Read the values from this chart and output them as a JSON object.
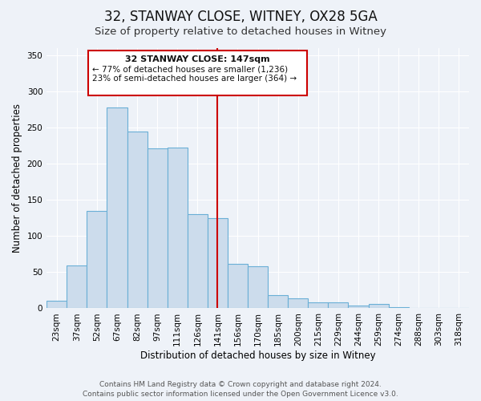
{
  "title": "32, STANWAY CLOSE, WITNEY, OX28 5GA",
  "subtitle": "Size of property relative to detached houses in Witney",
  "xlabel": "Distribution of detached houses by size in Witney",
  "ylabel": "Number of detached properties",
  "categories": [
    "23sqm",
    "37sqm",
    "52sqm",
    "67sqm",
    "82sqm",
    "97sqm",
    "111sqm",
    "126sqm",
    "141sqm",
    "156sqm",
    "170sqm",
    "185sqm",
    "200sqm",
    "215sqm",
    "229sqm",
    "244sqm",
    "259sqm",
    "274sqm",
    "288sqm",
    "303sqm",
    "318sqm"
  ],
  "values": [
    10,
    59,
    135,
    278,
    245,
    221,
    222,
    130,
    125,
    61,
    58,
    18,
    14,
    8,
    8,
    4,
    6,
    2,
    1,
    0,
    0
  ],
  "bar_color": "#ccdcec",
  "bar_edge_color": "#6aafd6",
  "vline_color": "#cc0000",
  "vline_x_index": 8,
  "annotation_title": "32 STANWAY CLOSE: 147sqm",
  "annotation_line1": "← 77% of detached houses are smaller (1,236)",
  "annotation_line2": "23% of semi-detached houses are larger (364) →",
  "annotation_box_edge_color": "#cc0000",
  "annotation_bg": "#ffffff",
  "footer1": "Contains HM Land Registry data © Crown copyright and database right 2024.",
  "footer2": "Contains public sector information licensed under the Open Government Licence v3.0.",
  "ylim": [
    0,
    360
  ],
  "yticks": [
    0,
    50,
    100,
    150,
    200,
    250,
    300,
    350
  ],
  "bg_color": "#eef2f8",
  "plot_bg_color": "#eef2f8",
  "title_fontsize": 12,
  "subtitle_fontsize": 9.5,
  "axis_label_fontsize": 8.5,
  "tick_fontsize": 7.5,
  "footer_fontsize": 6.5
}
